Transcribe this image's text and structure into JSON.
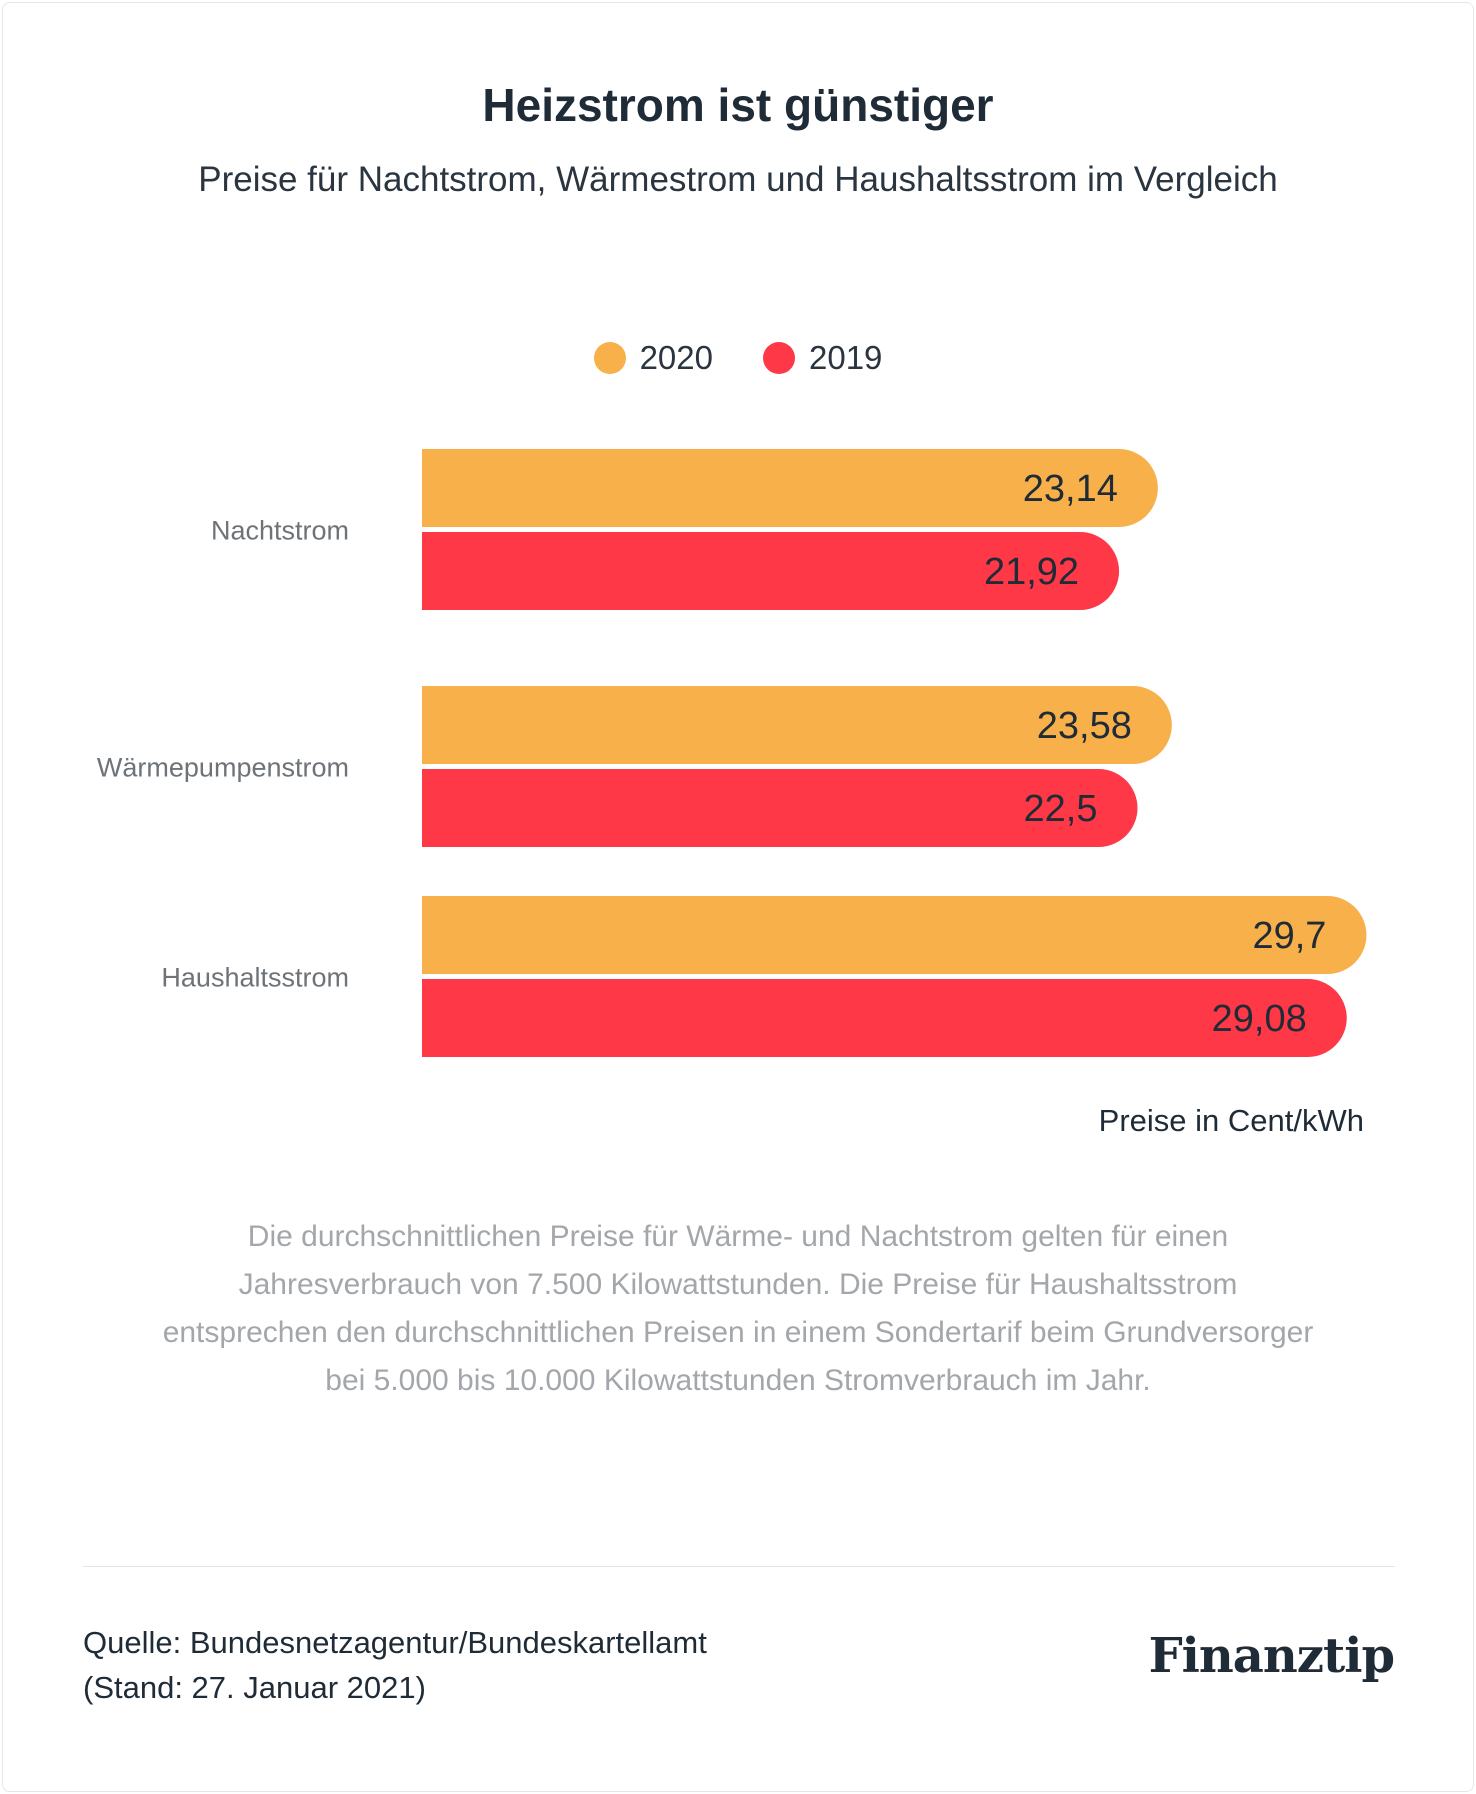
{
  "title": "Heizstrom ist günstiger",
  "subtitle": "Preise für Nachtstrom, Wärmestrom und Haushaltsstrom im Vergleich",
  "legend": [
    {
      "label": "2020",
      "color": "#f8b04a"
    },
    {
      "label": "2019",
      "color": "#fe3846"
    }
  ],
  "chart_data": {
    "type": "bar",
    "orientation": "horizontal",
    "categories": [
      "Nachtstrom",
      "Wärmepumpenstrom",
      "Haushaltsstrom"
    ],
    "series": [
      {
        "name": "2020",
        "color": "#f8b04a",
        "values": [
          23.14,
          23.58,
          29.7
        ],
        "labels": [
          "23,14",
          "23,58",
          "29,7"
        ]
      },
      {
        "name": "2019",
        "color": "#fe3846",
        "values": [
          21.92,
          22.5,
          29.08
        ],
        "labels": [
          "21,92",
          "22,5",
          "29,08"
        ]
      }
    ],
    "unit_label": "Preise in Cent/kWh",
    "xlim": [
      0,
      30
    ],
    "grid": false,
    "legend_position": "top-center"
  },
  "note": "Die durchschnittlichen Preise für Wärme- und Nachtstrom gelten für einen Jahresverbrauch von 7.500 Kilowattstunden. Die Preise für Haushaltsstrom entsprechen den durchschnittlichen Preisen in einem Sondertarif beim Grundversorger bei 5.000 bis 10.000 Kilowattstunden Stromverbrauch im Jahr.",
  "source": {
    "line1": "Quelle: Bundesnetzagentur/Bundeskartellamt",
    "line2": "(Stand: 27. Januar 2021)"
  },
  "logo": "Finanztip"
}
